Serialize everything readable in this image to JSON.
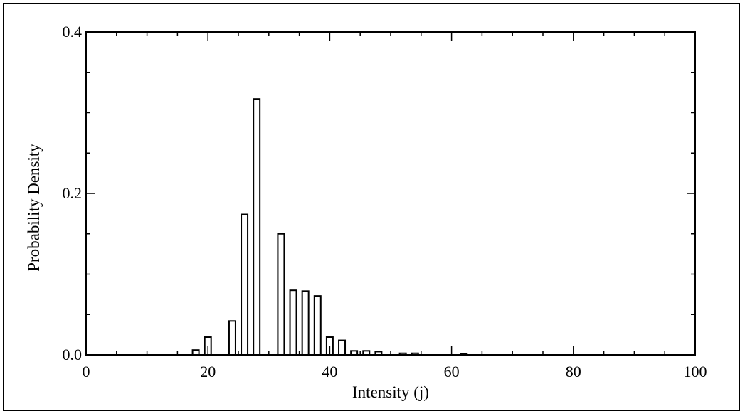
{
  "chart_data": {
    "type": "bar",
    "title": "",
    "xlabel": "Intensity (j)",
    "ylabel": "Probability Density",
    "xlim": [
      0,
      100
    ],
    "ylim": [
      0,
      0.4
    ],
    "x_ticks": [
      "0",
      "20",
      "40",
      "60",
      "80",
      "100"
    ],
    "y_ticks": [
      "0.0",
      "0.2",
      "0.4"
    ],
    "grid": false,
    "series": [
      {
        "x": [
          18,
          20,
          24,
          26,
          28,
          32,
          34,
          36,
          38,
          40,
          42,
          44,
          46,
          48,
          52,
          54,
          62
        ],
        "values": [
          0.006,
          0.022,
          0.042,
          0.174,
          0.317,
          0.15,
          0.08,
          0.079,
          0.073,
          0.022,
          0.018,
          0.005,
          0.005,
          0.004,
          0.002,
          0.002,
          0.001
        ]
      }
    ]
  }
}
